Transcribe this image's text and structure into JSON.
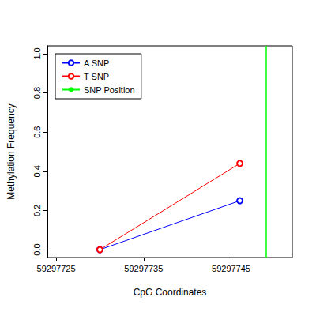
{
  "chart_data": {
    "type": "line",
    "x_label": "CpG Coordinates",
    "y_label": "Methylation Frequency",
    "series": [
      {
        "name": "A SNP",
        "color": "#0000FF",
        "marker": "open_circle",
        "x": [
          59297730,
          59297746
        ],
        "values": [
          0,
          0.25
        ]
      },
      {
        "name": "T SNP",
        "color": "#FF0000",
        "marker": "open_circle",
        "x": [
          59297730,
          59297746
        ],
        "values": [
          0,
          0.44
        ]
      }
    ],
    "snp_position": {
      "name": "SNP Position",
      "color": "#00FF00",
      "x": 59297749
    },
    "xlim": [
      59297724,
      59297752
    ],
    "xticks": [
      59297725,
      59297735,
      59297745
    ],
    "ylim": [
      -0.04,
      1.04
    ],
    "yticks": [
      {
        "value": 0,
        "label": "0.0"
      },
      {
        "value": 0.2,
        "label": "0.2"
      },
      {
        "value": 0.4,
        "label": "0.4"
      },
      {
        "value": 0.6,
        "label": "0.6"
      },
      {
        "value": 0.8,
        "label": "0.8"
      },
      {
        "value": 1,
        "label": "1.0"
      }
    ],
    "grid": false,
    "legend": "top-left"
  }
}
